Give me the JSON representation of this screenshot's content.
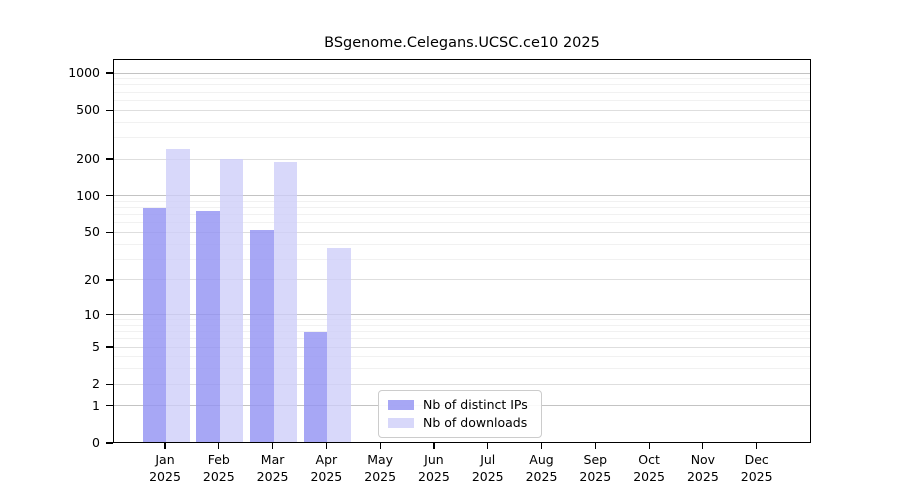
{
  "chart_data": {
    "type": "bar",
    "title": "BSgenome.Celegans.UCSC.ce10 2025",
    "categories": [
      "Jan",
      "Feb",
      "Mar",
      "Apr",
      "May",
      "Jun",
      "Jul",
      "Aug",
      "Sep",
      "Oct",
      "Nov",
      "Dec"
    ],
    "x_tick_year_line": "2025",
    "series": [
      {
        "name": "Nb of distinct IPs",
        "color": "#9494f3",
        "opacity": 0.82,
        "values": [
          80,
          75,
          52,
          7,
          0,
          0,
          0,
          0,
          0,
          0,
          0,
          0
        ]
      },
      {
        "name": "Nb of downloads",
        "color": "#cdcdf8",
        "opacity": 0.78,
        "values": [
          240,
          200,
          190,
          37,
          0,
          0,
          0,
          0,
          0,
          0,
          0,
          0
        ]
      }
    ],
    "xlabel": "",
    "ylabel": "",
    "yscale": "log1p",
    "ylim": [
      0,
      1300
    ],
    "yticks": [
      0,
      1,
      2,
      5,
      10,
      20,
      50,
      100,
      200,
      500,
      1000
    ],
    "minor_yticks": [
      3,
      4,
      6,
      7,
      8,
      9,
      30,
      40,
      60,
      70,
      80,
      90,
      300,
      400,
      600,
      700,
      800,
      900
    ],
    "grid": "on",
    "legend": {
      "position": "inside-lower-center"
    },
    "colors": {
      "axis": "#000000",
      "grid_major": "#c3c3c3",
      "grid_labeled": "#dedede",
      "grid_minor": "#f1f1f1",
      "text": "#000000",
      "background": "#ffffff"
    }
  }
}
